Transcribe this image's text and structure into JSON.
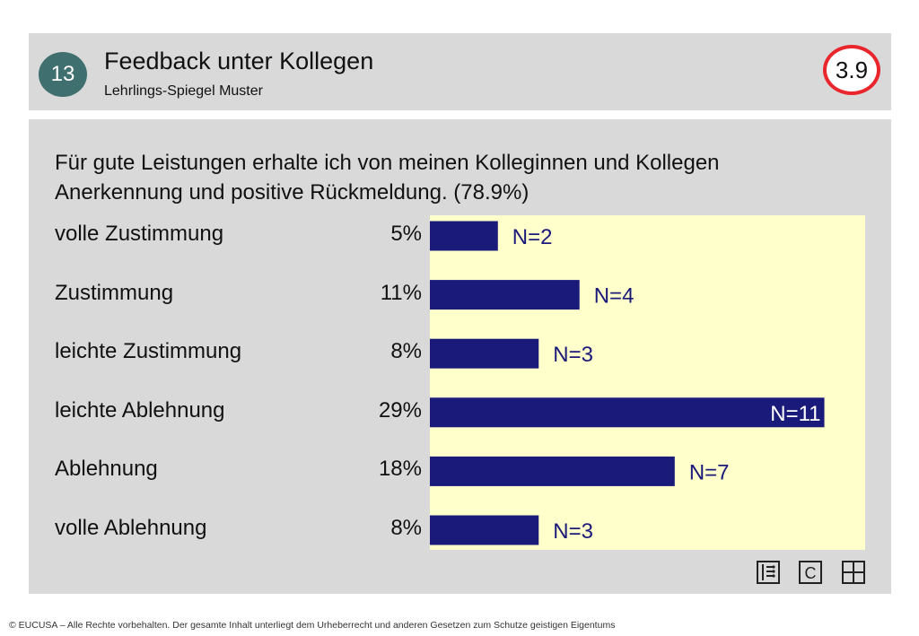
{
  "header": {
    "badge": "13",
    "title": "Feedback unter Kollegen",
    "subtitle": "Lehrlings-Spiegel Muster",
    "score": "3.9"
  },
  "question": "Für gute Leistungen erhalte ich von meinen Kolleginnen und Kollegen Anerkennung und positive Rückmeldung. (78.9%)",
  "colors": {
    "bar": "#1a1a7a",
    "plot_bg": "#ffffcc",
    "panel_bg": "#d9d9d9",
    "badge_bg": "#3f6f6e",
    "score_ring": "#e8262c"
  },
  "chart_data": {
    "type": "bar",
    "orientation": "horizontal",
    "categories": [
      "volle Zustimmung",
      "Zustimmung",
      "leichte Zustimmung",
      "leichte Ablehnung",
      "Ablehnung",
      "volle Ablehnung"
    ],
    "percent_labels": [
      "5%",
      "11%",
      "8%",
      "29%",
      "18%",
      "8%"
    ],
    "values": [
      5,
      11,
      8,
      29,
      18,
      8
    ],
    "counts": [
      "N=2",
      "N=4",
      "N=3",
      "N=11",
      "N=7",
      "N=3"
    ],
    "xlim": [
      0,
      32
    ]
  },
  "icons": [
    "list-icon",
    "copyright-c-icon",
    "grid-icon"
  ],
  "icon_c_label": "C",
  "footer": "© EUCUSA – Alle Rechte vorbehalten. Der gesamte Inhalt unterliegt dem Urheberrecht und anderen Gesetzen zum Schutze geistigen Eigentums"
}
